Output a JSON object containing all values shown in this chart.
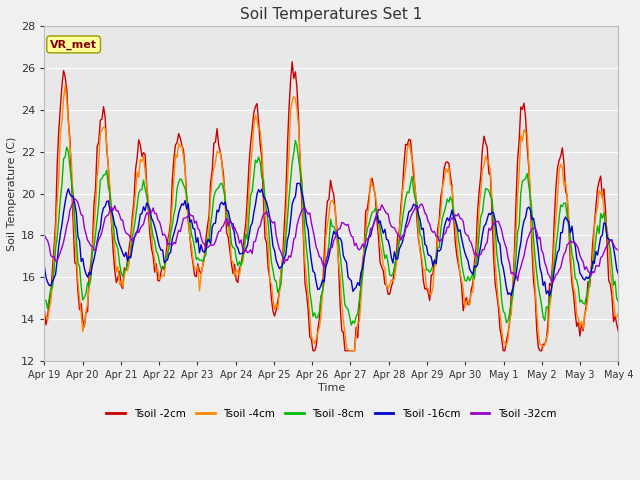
{
  "title": "Soil Temperatures Set 1",
  "xlabel": "Time",
  "ylabel": "Soil Temperature (C)",
  "ylim": [
    12,
    28
  ],
  "yticks": [
    12,
    14,
    16,
    18,
    20,
    22,
    24,
    26,
    28
  ],
  "xtick_labels": [
    "Apr 19",
    "Apr 20",
    "Apr 21",
    "Apr 22",
    "Apr 23",
    "Apr 24",
    "Apr 25",
    "Apr 26",
    "Apr 27",
    "Apr 28",
    "Apr 29",
    "Apr 30",
    "May 1",
    "May 2",
    "May 3",
    "May 4"
  ],
  "line_colors": [
    "#cc0000",
    "#ff8800",
    "#00bb00",
    "#0000cc",
    "#9900cc"
  ],
  "line_labels": [
    "Tsoil -2cm",
    "Tsoil -4cm",
    "Tsoil -8cm",
    "Tsoil -16cm",
    "Tsoil -32cm"
  ],
  "background_color": "#e8e8e8",
  "grid_color": "#ffffff",
  "annotation_text": "VR_met",
  "annotation_bg": "#ffff99",
  "annotation_border": "#999900",
  "fig_facecolor": "#f0f0f0"
}
